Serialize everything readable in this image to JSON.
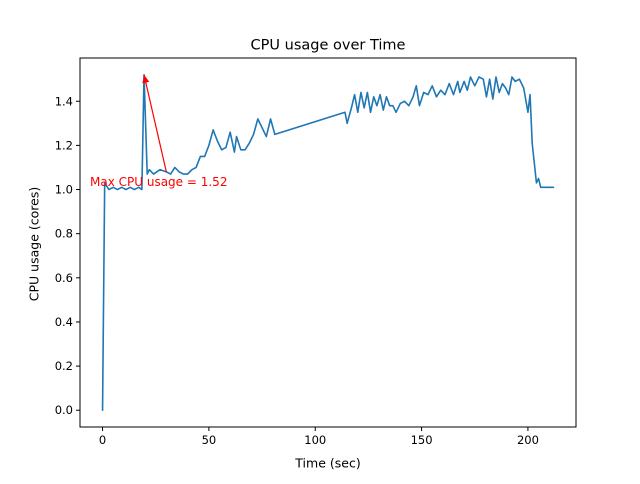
{
  "chart_data": {
    "type": "line",
    "title": "CPU usage over Time",
    "xlabel": "Time (sec)",
    "ylabel": "CPU usage (cores)",
    "xlim": [
      -10.6,
      222.6
    ],
    "ylim": [
      -0.076,
      1.596
    ],
    "xticks": [
      0,
      50,
      100,
      150,
      200
    ],
    "xtick_labels": [
      "0",
      "50",
      "100",
      "150",
      "200"
    ],
    "yticks": [
      0.0,
      0.2,
      0.4,
      0.6,
      0.8,
      1.0,
      1.2,
      1.4
    ],
    "ytick_labels": [
      "0.0",
      "0.2",
      "0.4",
      "0.6",
      "0.8",
      "1.0",
      "1.2",
      "1.4"
    ],
    "grid": false,
    "series": [
      {
        "color": "#1f77b4",
        "x": [
          0,
          1,
          3,
          5,
          7,
          9,
          11,
          13,
          15,
          17,
          18.5,
          19.5,
          21,
          22,
          24,
          27,
          30,
          32,
          34,
          36,
          38,
          40,
          42,
          44,
          46,
          48,
          50,
          52,
          54,
          56,
          58,
          60,
          62,
          63,
          65,
          67,
          69,
          71,
          73,
          75,
          77,
          79,
          81,
          114,
          115,
          117,
          118.5,
          120,
          121.5,
          123,
          124.5,
          126,
          127.5,
          129,
          130.5,
          132,
          133.5,
          135,
          136.5,
          138,
          140,
          142,
          144,
          146,
          147.5,
          149,
          151,
          153,
          155,
          157,
          159,
          161,
          163,
          165,
          167,
          168,
          170,
          171.5,
          173,
          175,
          177,
          179,
          180.5,
          182,
          183.5,
          185,
          186.5,
          188,
          189.5,
          191,
          192.5,
          194,
          196,
          198,
          200,
          201,
          202,
          204,
          205,
          206,
          208,
          210,
          212
        ],
        "y": [
          0.0,
          1.03,
          1.0,
          1.01,
          1.0,
          1.01,
          1.0,
          1.01,
          1.0,
          1.01,
          1.0,
          1.52,
          1.07,
          1.09,
          1.07,
          1.09,
          1.08,
          1.07,
          1.1,
          1.08,
          1.07,
          1.07,
          1.09,
          1.1,
          1.15,
          1.15,
          1.2,
          1.27,
          1.22,
          1.18,
          1.19,
          1.26,
          1.17,
          1.24,
          1.18,
          1.18,
          1.21,
          1.25,
          1.32,
          1.28,
          1.24,
          1.32,
          1.25,
          1.35,
          1.3,
          1.37,
          1.43,
          1.35,
          1.44,
          1.37,
          1.44,
          1.35,
          1.42,
          1.38,
          1.43,
          1.36,
          1.42,
          1.38,
          1.38,
          1.35,
          1.39,
          1.4,
          1.38,
          1.42,
          1.47,
          1.38,
          1.44,
          1.43,
          1.47,
          1.42,
          1.45,
          1.43,
          1.48,
          1.43,
          1.49,
          1.44,
          1.49,
          1.45,
          1.51,
          1.47,
          1.51,
          1.5,
          1.42,
          1.5,
          1.41,
          1.51,
          1.44,
          1.48,
          1.46,
          1.43,
          1.51,
          1.49,
          1.5,
          1.46,
          1.35,
          1.43,
          1.21,
          1.03,
          1.05,
          1.01,
          1.01,
          1.01,
          1.01
        ]
      }
    ],
    "annotation": {
      "text": "Max CPU usage = 1.52",
      "color": "#ff0000",
      "point": [
        19.5,
        1.52
      ],
      "text_anchor_point": [
        30,
        1.08
      ],
      "text_pos": [
        -7,
        1.01
      ]
    }
  }
}
